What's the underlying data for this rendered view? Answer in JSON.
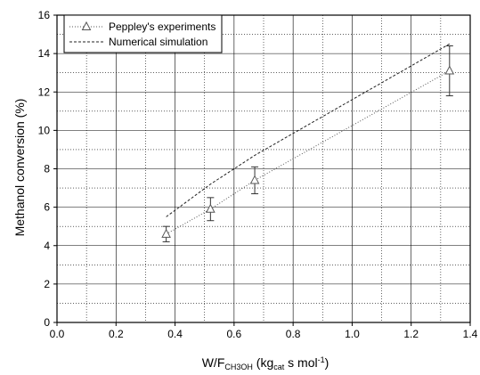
{
  "chart_data": {
    "type": "line",
    "xlabel": {
      "main": "W/F",
      "sub": "CH3OH",
      "open": " (kg",
      "sub2": "cat",
      "mid": " s mol",
      "sup": "-1",
      "close": ")"
    },
    "ylabel": "Methanol conversion (%)",
    "xlim": [
      0.0,
      1.4
    ],
    "ylim": [
      0,
      16
    ],
    "xticks": [
      "0.0",
      "0.2",
      "0.4",
      "0.6",
      "0.8",
      "1.0",
      "1.2",
      "1.4"
    ],
    "yticks": [
      "0",
      "2",
      "4",
      "6",
      "8",
      "10",
      "12",
      "14",
      "16"
    ],
    "grid": "major and minor",
    "legend_position": "top-left",
    "series": [
      {
        "name": "Peppley's experiments",
        "style": "dotted",
        "marker": "triangle-open",
        "color": "#555555",
        "x": [
          0.37,
          0.52,
          0.67,
          1.33
        ],
        "y": [
          4.6,
          5.9,
          7.4,
          13.1
        ],
        "err": [
          0.4,
          0.6,
          0.7,
          1.3
        ]
      },
      {
        "name": "Numerical simulation",
        "style": "dashed",
        "color": "#222222",
        "x": [
          0.37,
          0.52,
          0.67,
          1.33
        ],
        "y": [
          5.5,
          7.2,
          8.7,
          14.5
        ]
      }
    ]
  }
}
